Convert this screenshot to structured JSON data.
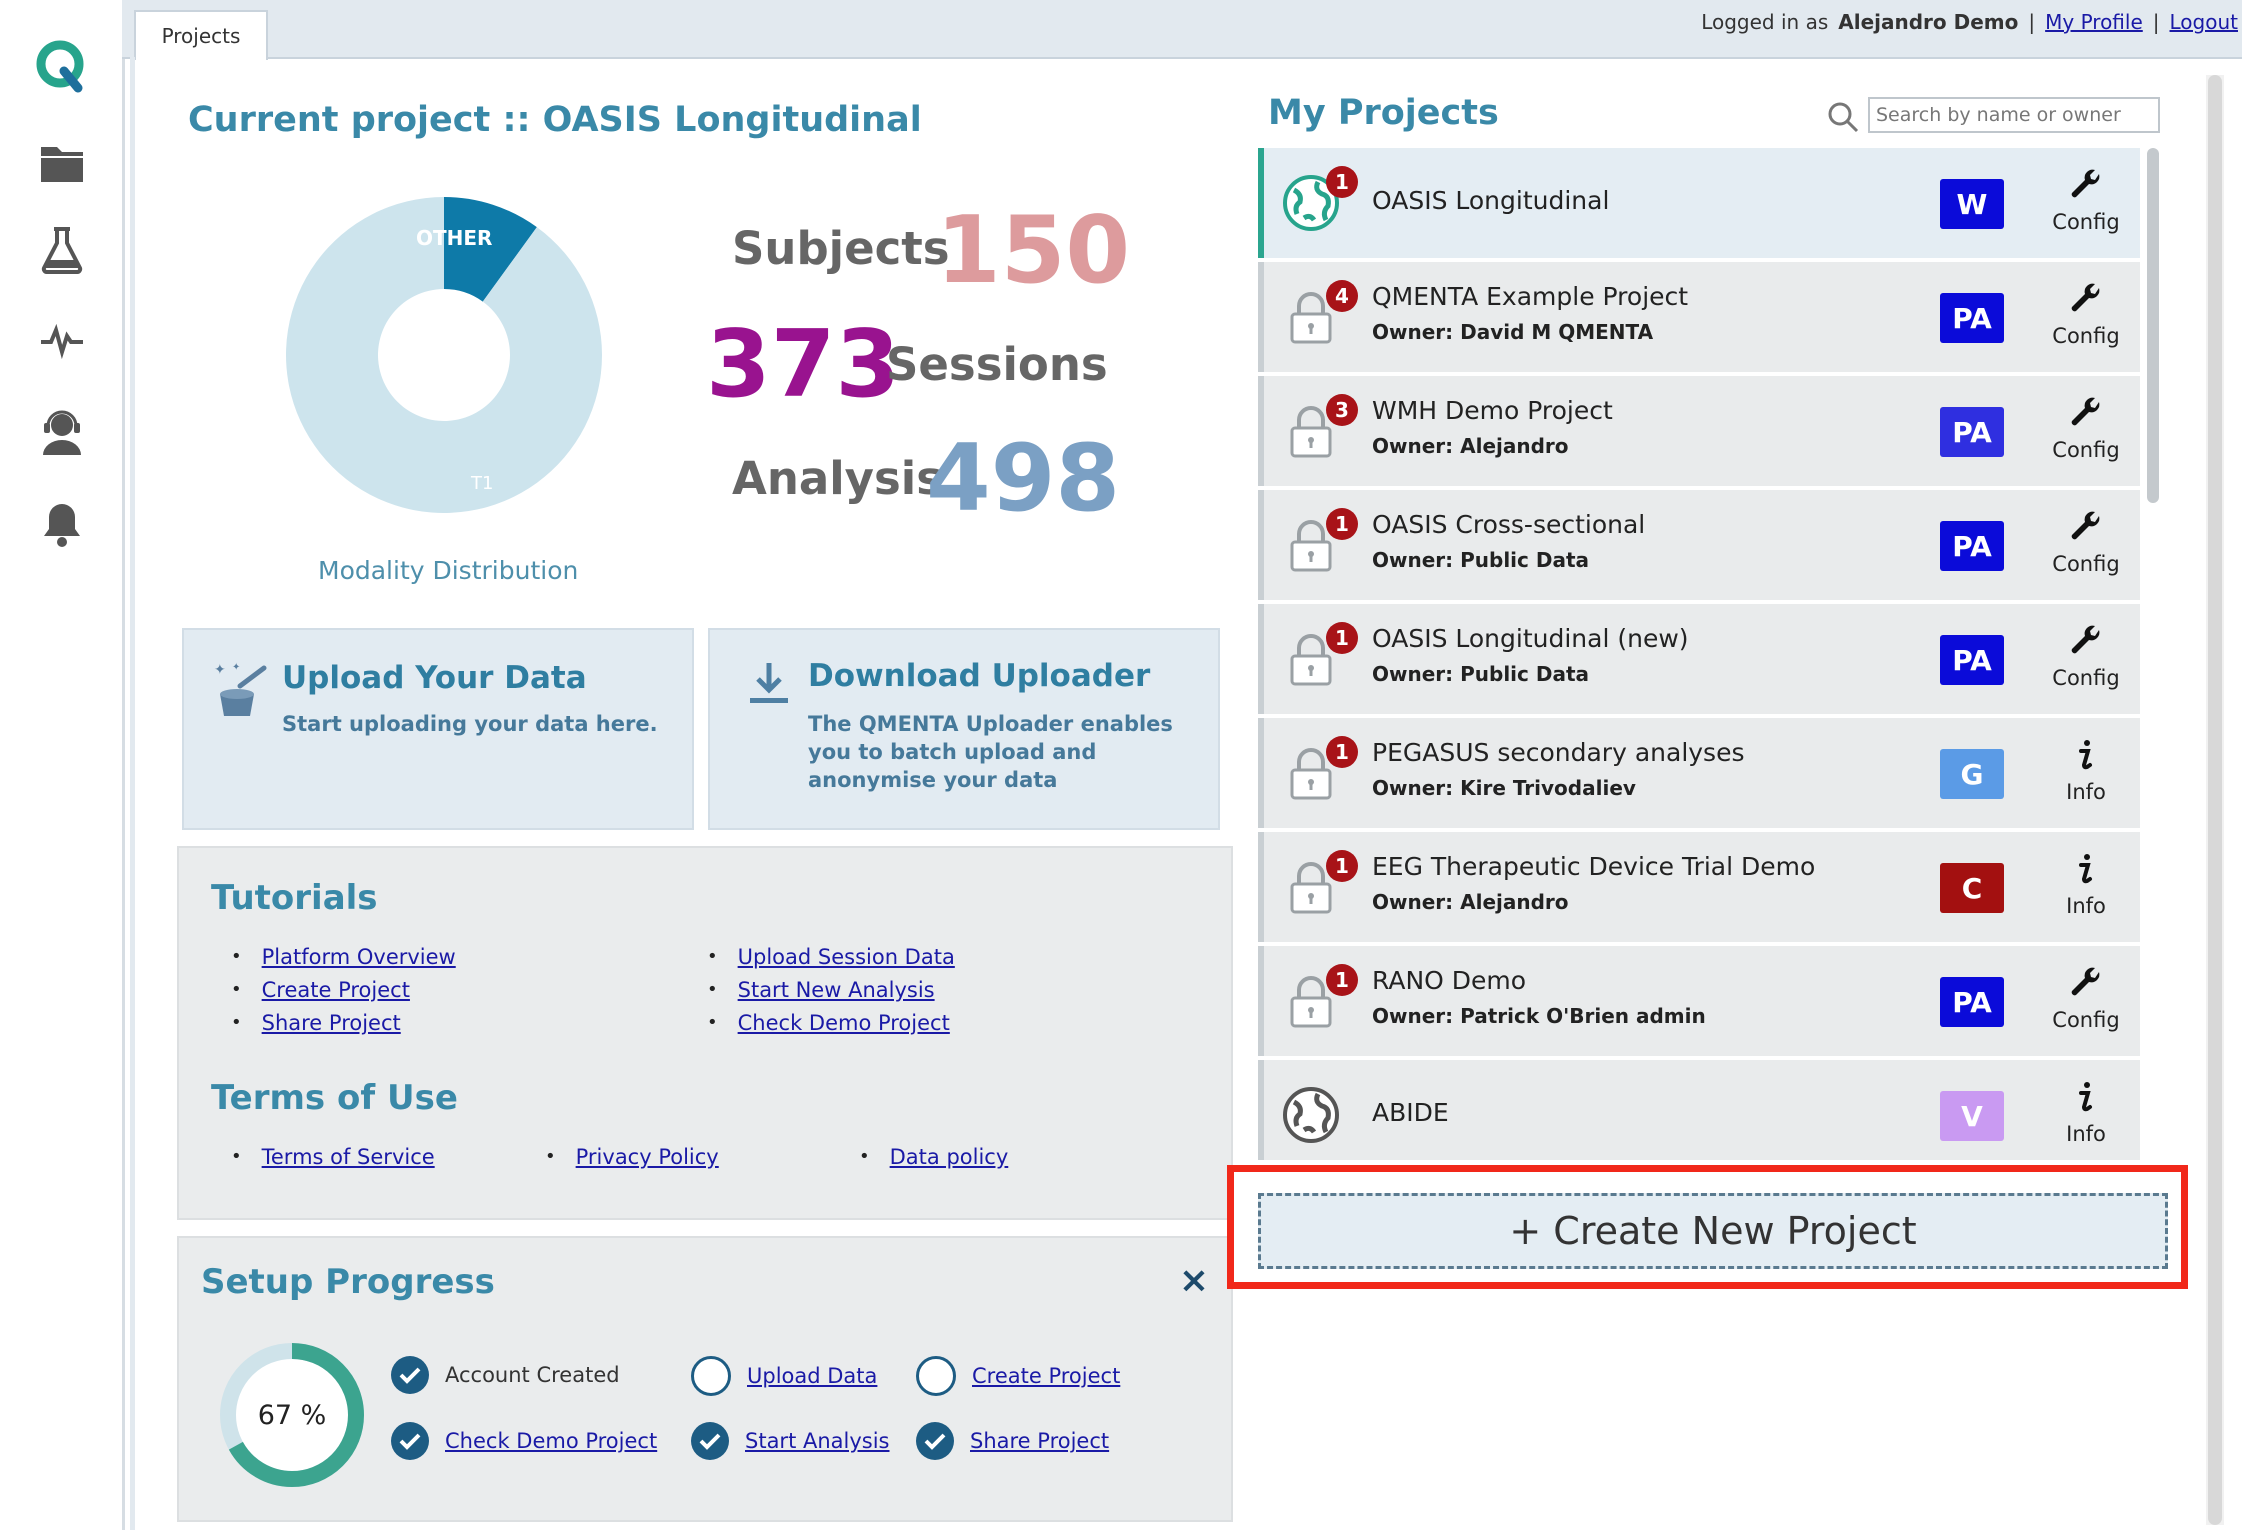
{
  "topbar": {
    "tab": "Projects",
    "logged_in_prefix": "Logged in as",
    "user_name": "Alejandro Demo",
    "sep": "|",
    "profile_link": "My Profile",
    "logout_link": "Logout"
  },
  "sidebar": {
    "icons": [
      "qmenta-logo-icon",
      "folder-icon",
      "flask-icon",
      "pulse-icon",
      "support-agent-icon",
      "bell-icon"
    ]
  },
  "current_project": {
    "title": "Current project :: OASIS Longitudinal",
    "donut": {
      "slices": [
        {
          "label": "OTHER",
          "share": 0.1,
          "color": "#0e7aa8"
        },
        {
          "label": "T1",
          "share": 0.9,
          "color": "#cde4ed"
        }
      ],
      "caption": "Modality Distribution"
    },
    "stats": {
      "subjects_label": "Subjects",
      "subjects_value": "150",
      "sessions_label": "Sessions",
      "sessions_value": "373",
      "analysis_label": "Analysis",
      "analysis_value": "498"
    },
    "colors": {
      "subjects": "#dd9b9d",
      "sessions": "#99138f",
      "analysis": "#7ba0c4"
    }
  },
  "cards": {
    "upload": {
      "title": "Upload Your Data",
      "text": "Start uploading your data here."
    },
    "download": {
      "title": "Download Uploader",
      "text": "The QMENTA Uploader enables you to batch upload and anonymise your data"
    }
  },
  "tutorials": {
    "title": "Tutorials",
    "col1": [
      "Platform Overview",
      "Create Project",
      "Share Project"
    ],
    "col2": [
      "Upload Session Data",
      "Start New Analysis",
      "Check Demo Project"
    ]
  },
  "terms": {
    "title": "Terms of Use",
    "links": [
      "Terms of Service",
      "Privacy Policy",
      "Data policy"
    ]
  },
  "setup": {
    "title": "Setup Progress",
    "close": "×",
    "progress": "67 %",
    "progress_fraction": 0.67,
    "steps": [
      {
        "label": "Account Created",
        "done": true,
        "link": false
      },
      {
        "label": "Upload Data",
        "done": false,
        "link": true
      },
      {
        "label": "Create Project",
        "done": false,
        "link": true
      },
      {
        "label": "Check Demo Project",
        "done": true,
        "link": true
      },
      {
        "label": "Start Analysis",
        "done": true,
        "link": true
      },
      {
        "label": "Share Project",
        "done": true,
        "link": true
      }
    ]
  },
  "my_projects": {
    "title": "My Projects",
    "search_placeholder": "Search by name or owner",
    "items": [
      {
        "name": "OASIS Longitudinal",
        "owner": "",
        "badge": "1",
        "role": "W",
        "role_color": "#0b0bd9",
        "action": "Config",
        "icon": "globe-icon-teal",
        "active": true
      },
      {
        "name": "QMENTA Example Project",
        "owner": "Owner: David M QMENTA",
        "badge": "4",
        "role": "PA",
        "role_color": "#0b0bd9",
        "action": "Config",
        "icon": "lock-icon",
        "active": false
      },
      {
        "name": "WMH Demo Project",
        "owner": "Owner: Alejandro",
        "badge": "3",
        "role": "PA",
        "role_color": "#2f2fe0",
        "action": "Config",
        "icon": "lock-icon",
        "active": false
      },
      {
        "name": "OASIS Cross-sectional",
        "owner": "Owner: Public Data",
        "badge": "1",
        "role": "PA",
        "role_color": "#0b0bd9",
        "action": "Config",
        "icon": "lock-icon",
        "active": false
      },
      {
        "name": "OASIS Longitudinal (new)",
        "owner": "Owner: Public Data",
        "badge": "1",
        "role": "PA",
        "role_color": "#0b0bd9",
        "action": "Config",
        "icon": "lock-icon",
        "active": false
      },
      {
        "name": "PEGASUS secondary analyses",
        "owner": "Owner: Kire Trivodaliev",
        "badge": "1",
        "role": "G",
        "role_color": "#5b9be6",
        "action": "Info",
        "icon": "lock-icon",
        "active": false
      },
      {
        "name": "EEG Therapeutic Device Trial Demo",
        "owner": "Owner: Alejandro",
        "badge": "1",
        "role": "C",
        "role_color": "#a31010",
        "action": "Info",
        "icon": "lock-icon",
        "active": false
      },
      {
        "name": "RANO Demo",
        "owner": "Owner: Patrick O'Brien admin",
        "badge": "1",
        "role": "PA",
        "role_color": "#0b0bd9",
        "action": "Config",
        "icon": "lock-icon",
        "active": false
      },
      {
        "name": "ABIDE",
        "owner": "",
        "badge": "",
        "role": "V",
        "role_color": "#c99af2",
        "action": "Info",
        "icon": "globe-icon-gray",
        "active": false
      }
    ],
    "create_button": "+ Create New Project"
  }
}
